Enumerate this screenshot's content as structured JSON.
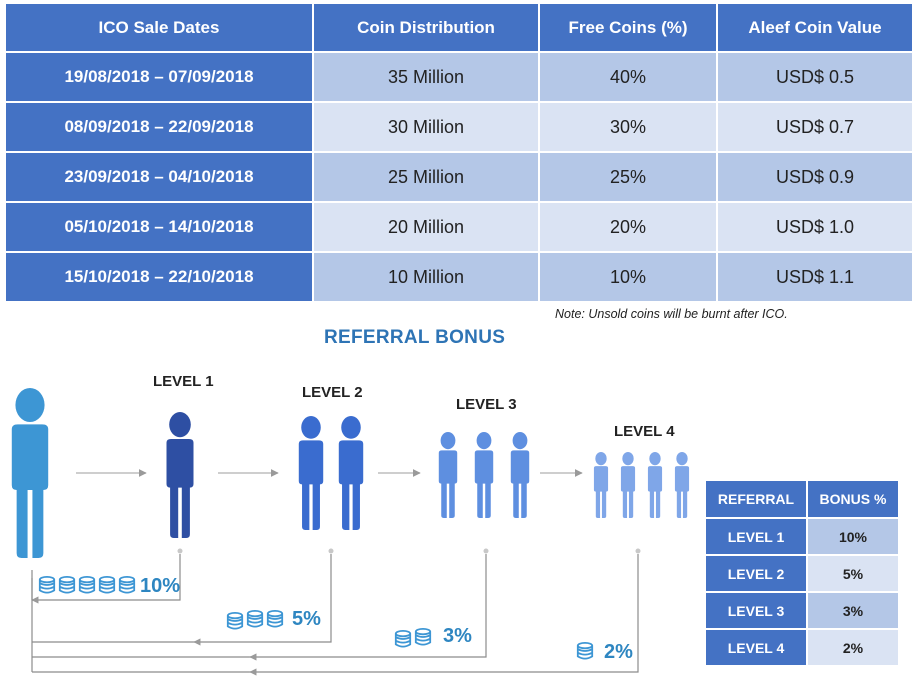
{
  "sale_table": {
    "headers": [
      "ICO Sale Dates",
      "Coin Distribution",
      "Free Coins (%)",
      "Aleef Coin Value"
    ],
    "rows": [
      [
        "19/08/2018 – 07/09/2018",
        "35 Million",
        "40%",
        "USD$ 0.5"
      ],
      [
        "08/09/2018 – 22/09/2018",
        "30 Million",
        "30%",
        "USD$ 0.7"
      ],
      [
        "23/09/2018 – 04/10/2018",
        "25 Million",
        "25%",
        "USD$ 0.9"
      ],
      [
        "05/10/2018 – 14/10/2018",
        "20 Million",
        "20%",
        "USD$ 1.0"
      ],
      [
        "15/10/2018 – 22/10/2018",
        "10 Million",
        "10%",
        "USD$ 1.1"
      ]
    ],
    "note": "Note: Unsold coins will be burnt after ICO."
  },
  "referral": {
    "title": "REFERRAL BONUS",
    "levels": [
      "LEVEL 1",
      "LEVEL 2",
      "LEVEL 3",
      "LEVEL 4"
    ],
    "percentages": [
      "10%",
      "5%",
      "3%",
      "2%"
    ],
    "coin_counts": [
      5,
      3,
      2,
      1
    ],
    "colors": {
      "referrer": "#3d96d4",
      "level1": "#2e4fa3",
      "level2": "#3a6ccf",
      "level3": "#5e8fe0",
      "level4": "#7fa6e8",
      "coin": "#3d96d4",
      "header": "#4472c4"
    }
  },
  "bonus_table": {
    "headers": [
      "REFERRAL",
      "BONUS %"
    ],
    "rows": [
      [
        "LEVEL 1",
        "10%"
      ],
      [
        "LEVEL 2",
        "5%"
      ],
      [
        "LEVEL 3",
        "3%"
      ],
      [
        "LEVEL 4",
        "2%"
      ]
    ]
  }
}
